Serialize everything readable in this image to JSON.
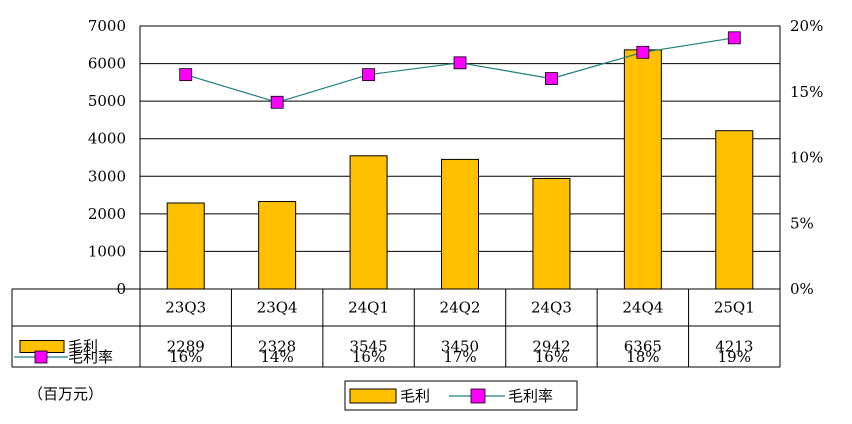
{
  "chart_data": {
    "type": "bar",
    "categories": [
      "23Q3",
      "23Q4",
      "24Q1",
      "24Q2",
      "24Q3",
      "24Q4",
      "25Q1"
    ],
    "series": [
      {
        "name": "毛利",
        "kind": "bar",
        "axis": "left",
        "color": "#FFC000",
        "values": [
          2289,
          2328,
          3545,
          3450,
          2942,
          6365,
          4213
        ],
        "labels": [
          "2289",
          "2328",
          "3545",
          "3450",
          "2942",
          "6365",
          "4213"
        ]
      },
      {
        "name": "毛利率",
        "kind": "line",
        "axis": "right",
        "color": "#1F7E7E",
        "marker_color": "#FF00FF",
        "values": [
          16.3,
          14.2,
          16.3,
          17.2,
          16.0,
          18.0,
          19.1
        ],
        "labels": [
          "16%",
          "14%",
          "16%",
          "17%",
          "16%",
          "18%",
          "19%"
        ]
      }
    ],
    "y_left": {
      "ticks": [
        "0",
        "1000",
        "2000",
        "3000",
        "4000",
        "5000",
        "6000",
        "7000"
      ],
      "lim": [
        0,
        7000
      ]
    },
    "y_right": {
      "ticks": [
        "0%",
        "5%",
        "10%",
        "15%",
        "20%"
      ],
      "lim": [
        0,
        20
      ]
    },
    "unit_label": "（百万元）",
    "legend_placement": "bottom-center",
    "grid": true,
    "data_table": true
  }
}
